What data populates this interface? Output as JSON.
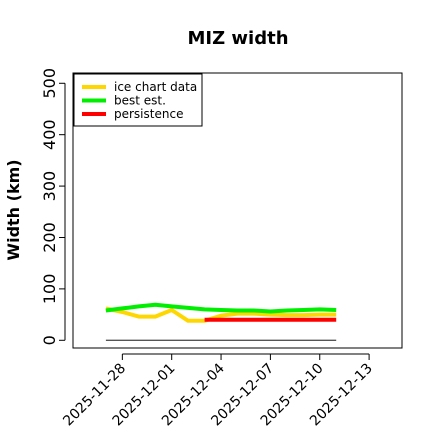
{
  "chart_data": {
    "type": "line",
    "title": "MIZ width",
    "xlabel": "",
    "ylabel": "Width (km)",
    "ylim": [
      -15,
      520
    ],
    "xlim": [
      "2025-11-25",
      "2025-12-15"
    ],
    "yticks": [
      0,
      100,
      200,
      300,
      400,
      500
    ],
    "xticks": [
      "2025-11-28",
      "2025-12-01",
      "2025-12-04",
      "2025-12-07",
      "2025-12-10",
      "2025-12-13"
    ],
    "grid": false,
    "legend_position": "top-left",
    "series": [
      {
        "name": "ice chart data",
        "color": "#FFD700",
        "x": [
          "2025-11-27",
          "2025-11-28",
          "2025-11-29",
          "2025-11-30",
          "2025-12-01",
          "2025-12-02",
          "2025-12-03",
          "2025-12-04",
          "2025-12-05",
          "2025-12-06",
          "2025-12-07",
          "2025-12-08",
          "2025-12-09",
          "2025-12-10",
          "2025-12-11"
        ],
        "y": [
          62,
          55,
          46,
          46,
          59,
          38,
          38,
          48,
          52,
          52,
          50,
          49,
          49,
          50,
          50
        ]
      },
      {
        "name": "best est.",
        "color": "#00EE00",
        "x": [
          "2025-11-27",
          "2025-11-28",
          "2025-11-29",
          "2025-11-30",
          "2025-12-01",
          "2025-12-02",
          "2025-12-03",
          "2025-12-04",
          "2025-12-05",
          "2025-12-06",
          "2025-12-07",
          "2025-12-08",
          "2025-12-09",
          "2025-12-10",
          "2025-12-11"
        ],
        "y": [
          58,
          62,
          66,
          69,
          66,
          63,
          60,
          59,
          58,
          58,
          56,
          58,
          59,
          60,
          59
        ]
      },
      {
        "name": "persistence",
        "color": "#FF0000",
        "x": [
          "2025-12-03",
          "2025-12-11"
        ],
        "y": [
          40,
          40
        ]
      },
      {
        "name": "",
        "color": "#555555",
        "x": [
          "2025-11-27",
          "2025-12-11"
        ],
        "y": [
          0,
          0
        ]
      }
    ]
  }
}
